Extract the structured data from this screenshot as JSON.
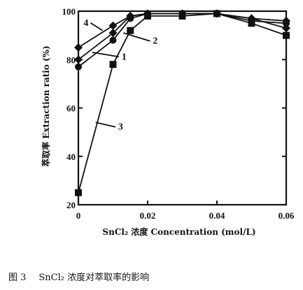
{
  "chart_data": {
    "type": "line",
    "xlabel": "SnCl₂ 浓度 Concentration (mol/L)",
    "ylabel": "萃取率 Extraction ratio (%)",
    "xlim": [
      0,
      0.06
    ],
    "ylim": [
      20,
      100
    ],
    "xticks": [
      0,
      0.02,
      0.04,
      0.06
    ],
    "xtick_labels": [
      "0",
      "0.02",
      "0.04",
      "0.06"
    ],
    "yticks": [
      20,
      40,
      60,
      80,
      100
    ],
    "ytick_labels": [
      "20",
      "40",
      "60",
      "80",
      "100"
    ],
    "grid": false,
    "series": [
      {
        "name": "1",
        "marker": "diamond",
        "x": [
          0,
          0.01,
          0.015,
          0.02,
          0.03,
          0.04,
          0.05,
          0.06
        ],
        "y": [
          80,
          91,
          98,
          99,
          99,
          99,
          97,
          93
        ]
      },
      {
        "name": "2",
        "marker": "circle",
        "x": [
          0,
          0.01,
          0.015,
          0.02,
          0.03,
          0.04,
          0.05,
          0.06
        ],
        "y": [
          77,
          88,
          97,
          99,
          99,
          99,
          96,
          95
        ]
      },
      {
        "name": "3",
        "marker": "square",
        "x": [
          0,
          0.01,
          0.015,
          0.02,
          0.03,
          0.04,
          0.05,
          0.06
        ],
        "y": [
          25,
          78,
          92,
          98,
          98,
          99,
          95,
          90
        ]
      },
      {
        "name": "4",
        "marker": "diamond",
        "x": [
          0,
          0.01,
          0.015,
          0.02,
          0.03,
          0.04,
          0.05,
          0.06
        ],
        "y": [
          85,
          94,
          98,
          99,
          99,
          99,
          97,
          96
        ]
      }
    ]
  },
  "caption": {
    "figure_number": "图 3",
    "text": "SnCl₂ 浓度对萃取率的影响"
  }
}
